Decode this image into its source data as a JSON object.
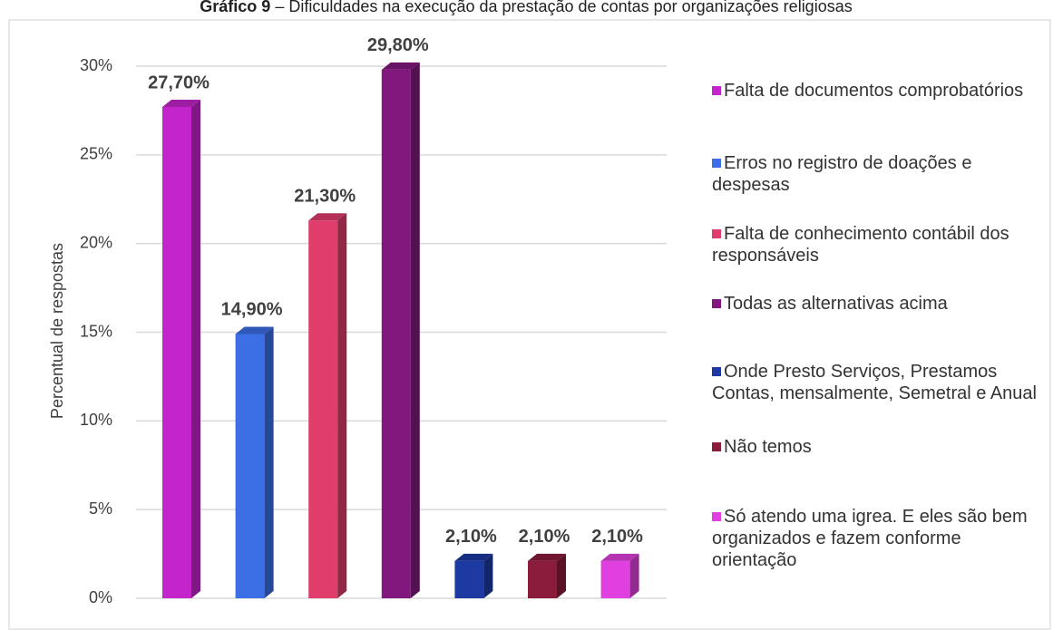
{
  "chart_data": {
    "type": "bar",
    "title_label": "Gráfico 9",
    "title": "– Dificuldades na execução da prestação de contas por organizações religiosas",
    "ylabel": "Percentual de respostas",
    "categories": [
      "Falta de documentos comprobatórios",
      "Erros no registro de doações e despesas",
      "Falta de conhecimento contábil dos responsáveis",
      "Todas as alternativas acima",
      "Onde Presto Serviços, Prestamos Contas, mensalmente, Semetral e Anual",
      "Não temos",
      "Só atendo uma igrea. E eles são bem organizados e fazem conforme orientação"
    ],
    "values": [
      27.7,
      14.9,
      21.3,
      29.8,
      2.1,
      2.1,
      2.1
    ],
    "value_labels": [
      "27,70%",
      "14,90%",
      "21,30%",
      "29,80%",
      "2,10%",
      "2,10%",
      "2,10%"
    ],
    "colors": [
      "#c424cc",
      "#3c6ee6",
      "#e03c6c",
      "#82187e",
      "#1c3aa2",
      "#8c1c3c",
      "#e040e0"
    ],
    "ylim": [
      0,
      30
    ],
    "yticks": [
      {
        "value": 0,
        "label": "0%"
      },
      {
        "value": 5,
        "label": "5%"
      },
      {
        "value": 10,
        "label": "10%"
      },
      {
        "value": 15,
        "label": "15%"
      },
      {
        "value": 20,
        "label": "20%"
      },
      {
        "value": 25,
        "label": "25%"
      },
      {
        "value": 30,
        "label": "30%"
      }
    ],
    "grid": true,
    "legend": "right"
  }
}
